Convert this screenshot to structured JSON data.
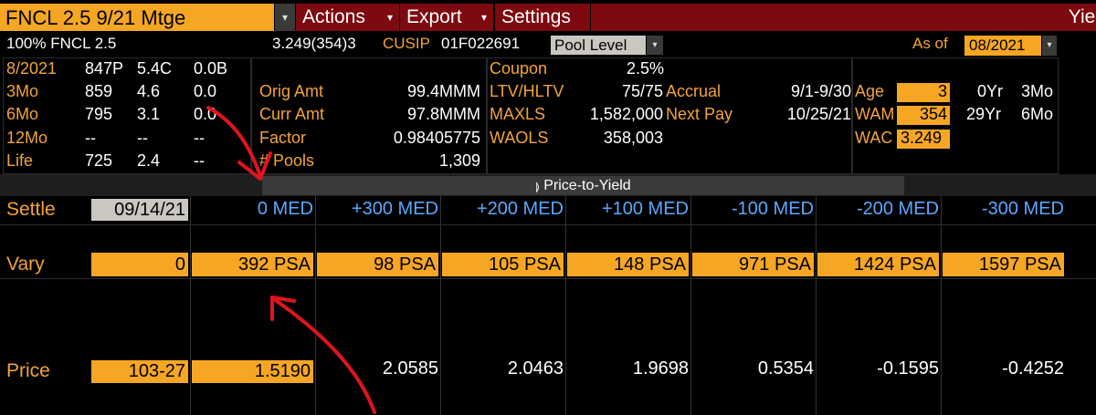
{
  "toolbar": {
    "security": "FNCL 2.5 9/21 Mtge",
    "menus": [
      {
        "label": "Actions",
        "arrow": "▾"
      },
      {
        "label": "Export",
        "arrow": "▾"
      },
      {
        "label": "Settings",
        "arrow": ""
      }
    ],
    "right_partial": "Yiel"
  },
  "header": {
    "description": "100% FNCL 2.5",
    "wac_wam": "3.249(354)3",
    "cusip_label": "CUSIP",
    "cusip": "01F022691",
    "pool_level": "Pool Level",
    "as_of_label": "As of",
    "as_of": "08/2021"
  },
  "speeds": [
    {
      "period": "8/2021",
      "a": "847P",
      "b": "5.4C",
      "c": "0.0B"
    },
    {
      "period": "3Mo",
      "a": "859",
      "b": "4.6",
      "c": "0.0"
    },
    {
      "period": "6Mo",
      "a": "795",
      "b": "3.1",
      "c": "0.0"
    },
    {
      "period": "12Mo",
      "a": "--",
      "b": "--",
      "c": "--"
    },
    {
      "period": "Life",
      "a": "725",
      "b": "2.4",
      "c": "--"
    }
  ],
  "amounts": [
    {
      "label": "Orig Amt",
      "value": "99.4MMM"
    },
    {
      "label": "Curr Amt",
      "value": "97.8MMM"
    },
    {
      "label": "Factor",
      "value": "0.98405775"
    },
    {
      "label": "# Pools",
      "value": "1,309"
    }
  ],
  "loan_stats": [
    {
      "label": "Coupon",
      "value": "2.5%"
    },
    {
      "label": "LTV/HLTV",
      "value": "75/75"
    },
    {
      "label": "MAXLS",
      "value": "1,582,000"
    },
    {
      "label": "WAOLS",
      "value": "358,003"
    }
  ],
  "dates": [
    {
      "label": "Accrual",
      "value": "9/1-9/30"
    },
    {
      "label": "Next Pay",
      "value": "10/25/21"
    }
  ],
  "age_stats": [
    {
      "label": "Age",
      "value": "3",
      "yr": "0Yr",
      "mo": "3Mo"
    },
    {
      "label": "WAM",
      "value": "354",
      "yr": "29Yr",
      "mo": "6Mo"
    },
    {
      "label": "WAC",
      "value": "3.249"
    }
  ],
  "pty": {
    "tab_icon": "⟭",
    "tab_label": "Price-to-Yield",
    "settle_label": "Settle",
    "settle_date": "09/14/21",
    "vary_label": "Vary",
    "vary_input": "0",
    "price_label": "Price",
    "price_input": "103-27",
    "columns": [
      {
        "header": "0 MED",
        "vary": "392 PSA",
        "value": "1.5190"
      },
      {
        "header": "+300 MED",
        "vary": "98 PSA",
        "value": "2.0585"
      },
      {
        "header": "+200 MED",
        "vary": "105 PSA",
        "value": "2.0463"
      },
      {
        "header": "+100 MED",
        "vary": "148 PSA",
        "value": "1.9698"
      },
      {
        "header": "-100 MED",
        "vary": "971 PSA",
        "value": "0.5354"
      },
      {
        "header": "-200 MED",
        "vary": "1424 PSA",
        "value": "-0.1595"
      },
      {
        "header": "-300 MED",
        "vary": "1597 PSA",
        "value": "-0.4252"
      }
    ]
  },
  "colors": {
    "amber": "#f5a623",
    "menu": "#7c0a0f",
    "header_blue": "#5aa8ff",
    "annotation": "#e0141e"
  }
}
